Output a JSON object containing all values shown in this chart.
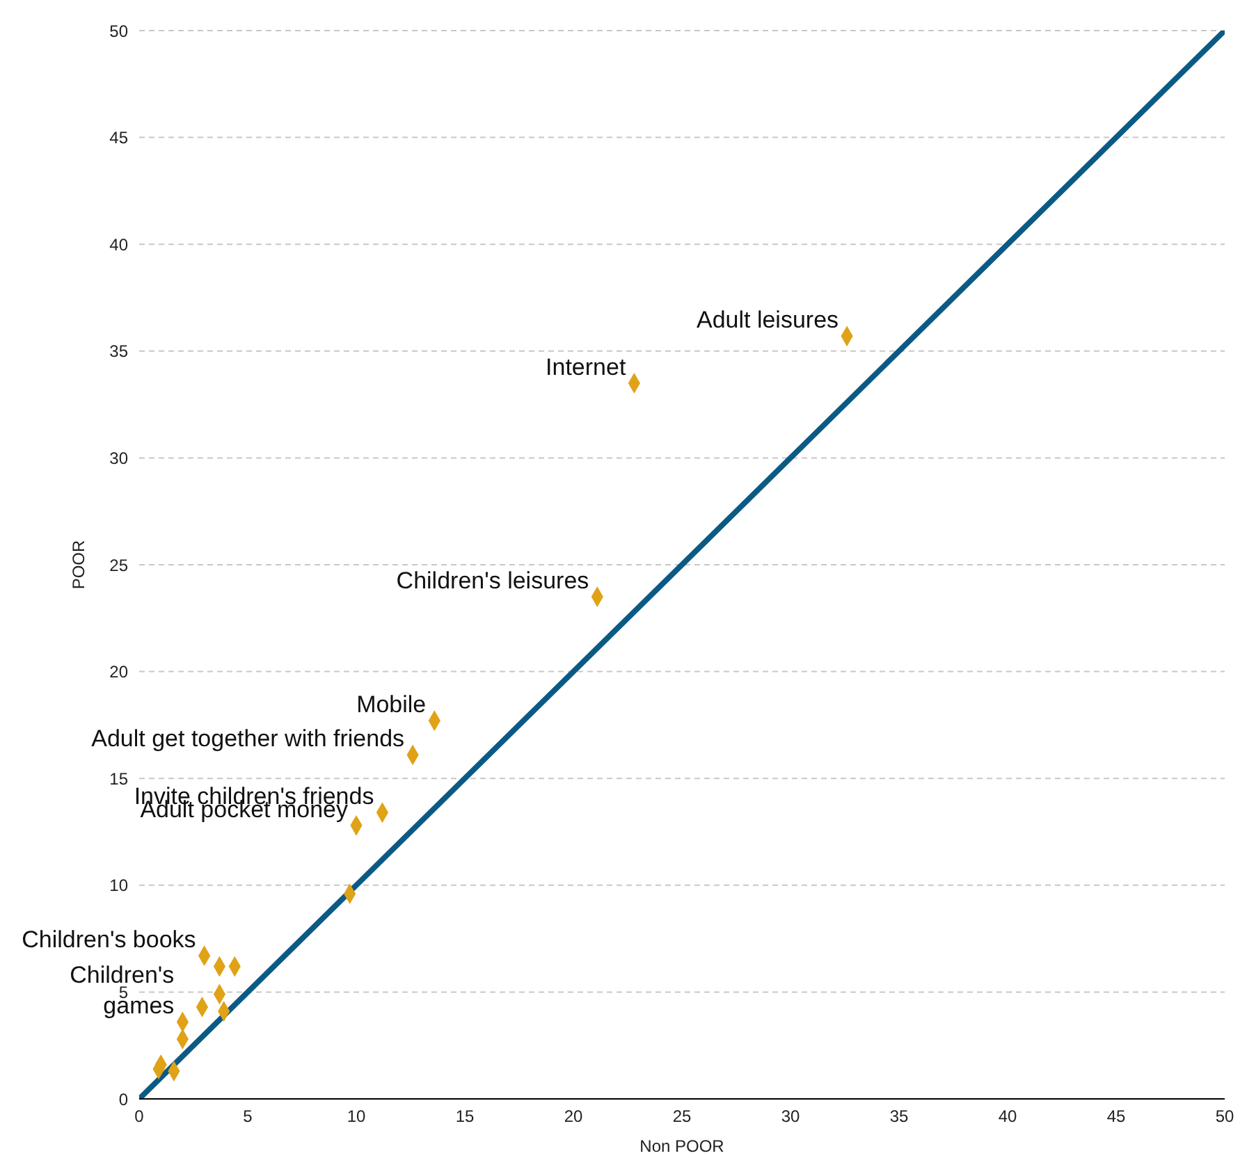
{
  "chart_data": {
    "type": "scatter",
    "xlabel": "Non POOR",
    "ylabel": "POOR",
    "xlim": [
      0,
      50
    ],
    "ylim": [
      0,
      50
    ],
    "xticks": [
      0,
      5,
      10,
      15,
      20,
      25,
      30,
      35,
      40,
      45,
      50
    ],
    "yticks": [
      0,
      5,
      10,
      15,
      20,
      25,
      30,
      35,
      40,
      45,
      50
    ],
    "grid": "y",
    "marker": "diamond",
    "series": [
      {
        "type": "line",
        "color": "#0b5a85",
        "x": [
          0,
          50
        ],
        "values": [
          0,
          50
        ],
        "marker": "none"
      },
      {
        "color": "#e0a216",
        "x": [
          32.6,
          22.8,
          21.1,
          13.6,
          12.6,
          11.2,
          10.0,
          9.7,
          3.0,
          3.7,
          4.4,
          3.7,
          2.9,
          3.9,
          2.0,
          2.0,
          1.0,
          0.9,
          1.6
        ],
        "values": [
          35.7,
          33.5,
          23.5,
          17.7,
          16.1,
          13.4,
          12.8,
          9.6,
          6.7,
          6.2,
          6.2,
          4.9,
          4.3,
          4.1,
          3.6,
          2.8,
          1.6,
          1.4,
          1.3
        ]
      }
    ],
    "annotations": [
      {
        "text": "Adult leisures",
        "x": 32.6,
        "y": 35.7
      },
      {
        "text": "Internet",
        "x": 22.8,
        "y": 33.5
      },
      {
        "text": "Children's leisures",
        "x": 21.1,
        "y": 23.5
      },
      {
        "text": "Mobile",
        "x": 13.6,
        "y": 17.7
      },
      {
        "text": "Adult get together with friends",
        "x": 12.6,
        "y": 16.1
      },
      {
        "text": "Invite children's friends",
        "x": 11.2,
        "y": 13.4
      },
      {
        "text": "Adult pocket money",
        "x": 10.0,
        "y": 12.8
      },
      {
        "text": "Children's books",
        "x": 3.0,
        "y": 6.7
      },
      {
        "text": "Children's\ngames",
        "x": 2.0,
        "y": 3.6
      }
    ]
  }
}
